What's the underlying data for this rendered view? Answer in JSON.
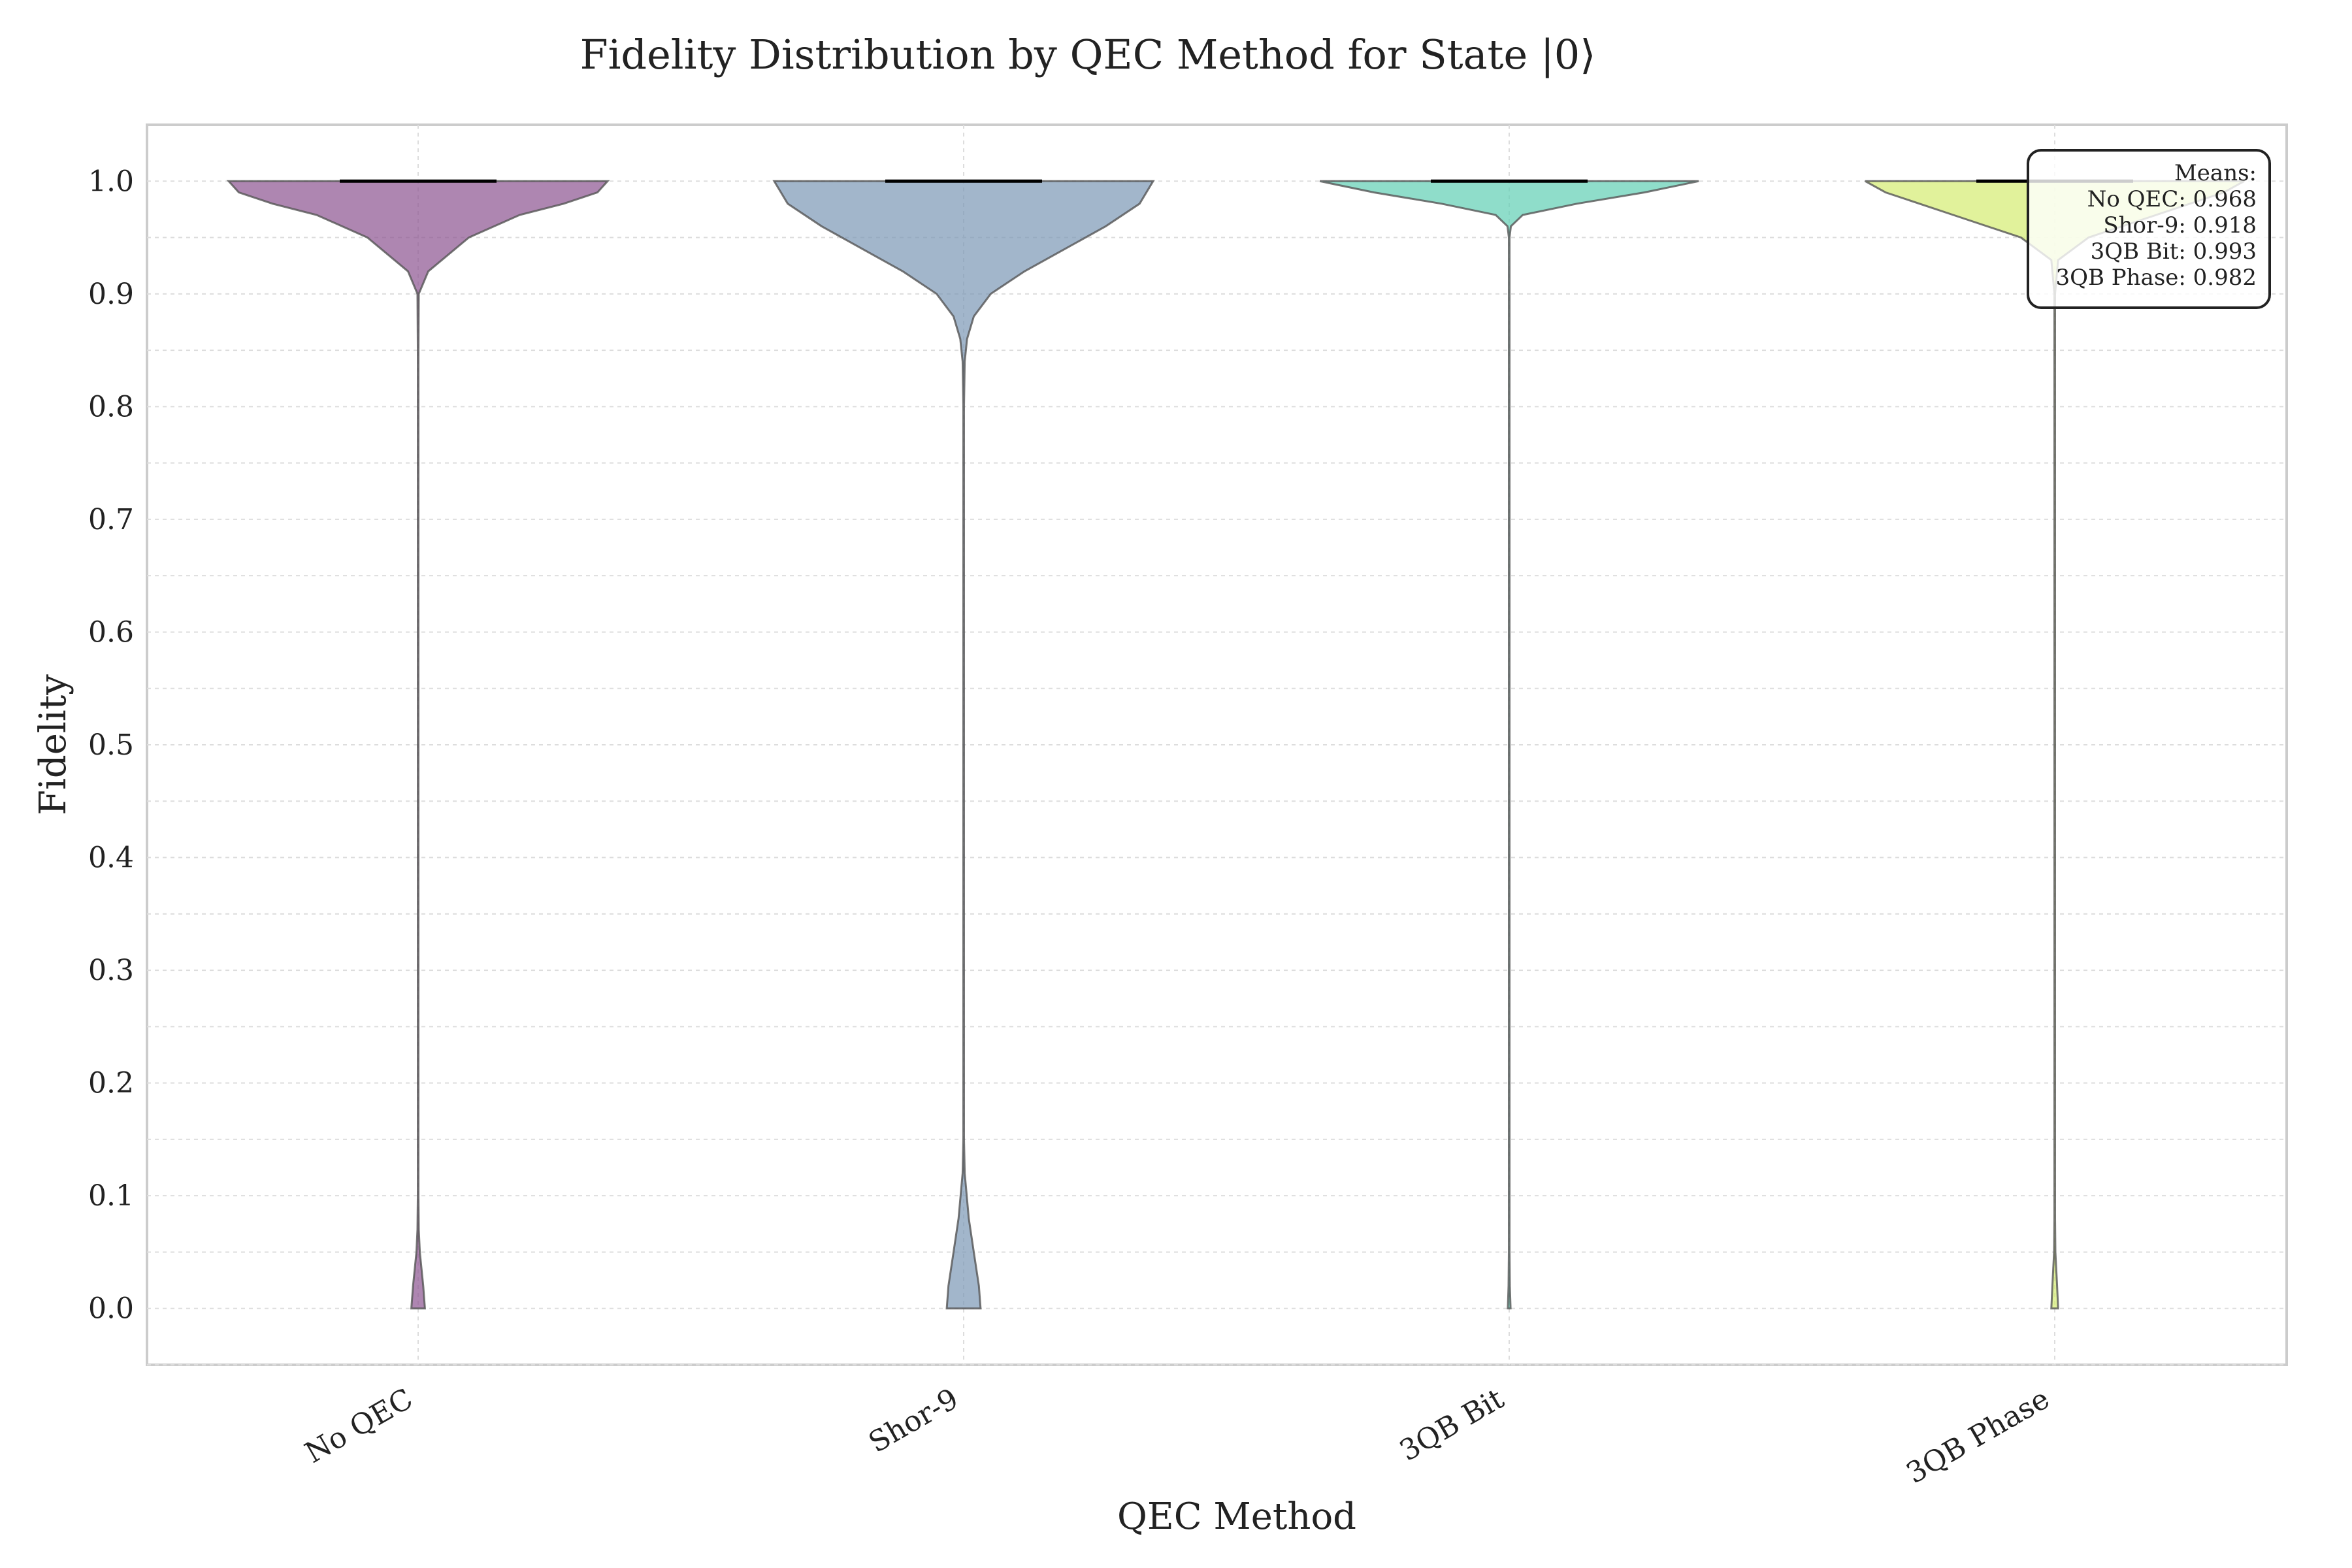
{
  "chart_data": {
    "type": "violin",
    "title": "Fidelity Distribution by QEC Method for State |0⟩",
    "xlabel": "QEC Method",
    "ylabel": "Fidelity",
    "ylim": [
      -0.05,
      1.05
    ],
    "yticks": [
      "0.0",
      "0.1",
      "0.2",
      "0.3",
      "0.4",
      "0.5",
      "0.6",
      "0.7",
      "0.8",
      "0.9",
      "1.0"
    ],
    "grid": true,
    "categories": [
      "No QEC",
      "Shor-9",
      "3QB Bit",
      "3QB Phase"
    ],
    "series": [
      {
        "category": "No QEC",
        "color": "#8b5390",
        "median": 1.0,
        "profile": [
          [
            0.0,
            0.02
          ],
          [
            0.02,
            0.015
          ],
          [
            0.05,
            0.005
          ],
          [
            0.07,
            0.002
          ],
          [
            0.1,
            0.001
          ],
          [
            0.85,
            0.001
          ],
          [
            0.9,
            0.002
          ],
          [
            0.92,
            0.03
          ],
          [
            0.95,
            0.15
          ],
          [
            0.97,
            0.3
          ],
          [
            0.98,
            0.43
          ],
          [
            0.99,
            0.53
          ],
          [
            1.0,
            0.56
          ]
        ],
        "mean": 0.968
      },
      {
        "category": "Shor-9",
        "color": "#7b97b5",
        "median": 1.0,
        "profile": [
          [
            0.0,
            0.05
          ],
          [
            0.02,
            0.045
          ],
          [
            0.05,
            0.03
          ],
          [
            0.08,
            0.015
          ],
          [
            0.12,
            0.003
          ],
          [
            0.15,
            0.001
          ],
          [
            0.8,
            0.001
          ],
          [
            0.84,
            0.003
          ],
          [
            0.86,
            0.01
          ],
          [
            0.88,
            0.03
          ],
          [
            0.9,
            0.08
          ],
          [
            0.92,
            0.18
          ],
          [
            0.94,
            0.3
          ],
          [
            0.96,
            0.42
          ],
          [
            0.98,
            0.52
          ],
          [
            1.0,
            0.56
          ]
        ],
        "mean": 0.918
      },
      {
        "category": "3QB Bit",
        "color": "#5fcfb4",
        "median": 1.0,
        "profile": [
          [
            0.0,
            0.004
          ],
          [
            0.02,
            0.002
          ],
          [
            0.05,
            0.001
          ],
          [
            0.95,
            0.001
          ],
          [
            0.96,
            0.005
          ],
          [
            0.97,
            0.04
          ],
          [
            0.98,
            0.2
          ],
          [
            0.99,
            0.4
          ],
          [
            1.0,
            0.56
          ]
        ],
        "mean": 0.993
      },
      {
        "category": "3QB Phase",
        "color": "#d4ec70",
        "median": 1.0,
        "profile": [
          [
            0.0,
            0.01
          ],
          [
            0.02,
            0.007
          ],
          [
            0.05,
            0.002
          ],
          [
            0.08,
            0.001
          ],
          [
            0.9,
            0.001
          ],
          [
            0.93,
            0.01
          ],
          [
            0.95,
            0.1
          ],
          [
            0.97,
            0.3
          ],
          [
            0.99,
            0.5
          ],
          [
            1.0,
            0.56
          ]
        ],
        "mean": 0.982
      }
    ],
    "legend_position": "top-right",
    "annotation": {
      "header": "Means:",
      "lines": [
        "No QEC: 0.968",
        "Shor-9: 0.918",
        "3QB Bit: 0.993",
        "3QB Phase: 0.982"
      ]
    }
  }
}
